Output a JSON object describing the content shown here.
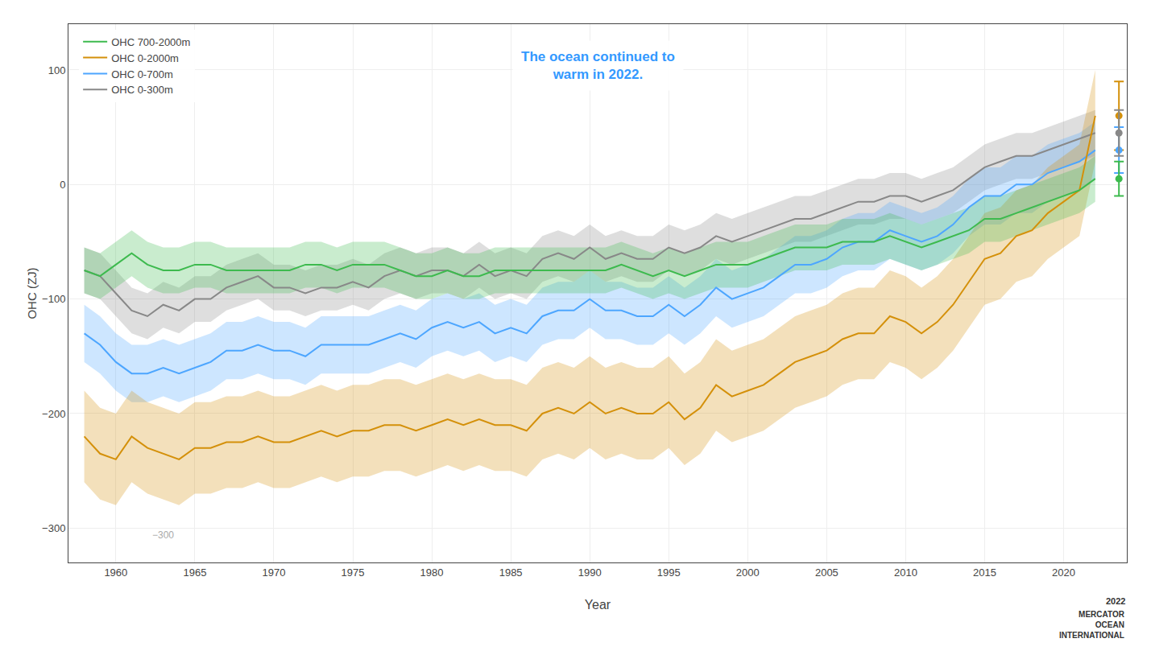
{
  "chart_data": {
    "type": "line",
    "xlabel": "Year",
    "ylabel": "OHC (ZJ)",
    "xlim": [
      1957,
      2024
    ],
    "ylim": [
      -330,
      140
    ],
    "xticks": [
      1960,
      1965,
      1970,
      1975,
      1980,
      1985,
      1990,
      1995,
      2000,
      2005,
      2010,
      2015,
      2020
    ],
    "yticks": [
      -300,
      -200,
      -100,
      0,
      100
    ],
    "grid": true,
    "legend": "upper left",
    "x": [
      1958,
      1959,
      1960,
      1961,
      1962,
      1963,
      1964,
      1965,
      1966,
      1967,
      1968,
      1969,
      1970,
      1971,
      1972,
      1973,
      1974,
      1975,
      1976,
      1977,
      1978,
      1979,
      1980,
      1981,
      1982,
      1983,
      1984,
      1985,
      1986,
      1987,
      1988,
      1989,
      1990,
      1991,
      1992,
      1993,
      1994,
      1995,
      1996,
      1997,
      1998,
      1999,
      2000,
      2001,
      2002,
      2003,
      2004,
      2005,
      2006,
      2007,
      2008,
      2009,
      2010,
      2011,
      2012,
      2013,
      2014,
      2015,
      2016,
      2017,
      2018,
      2019,
      2020,
      2021,
      2022
    ],
    "series": [
      {
        "name": "OHC 0-300m",
        "color": "#888888",
        "values": [
          -75,
          -80,
          -95,
          -110,
          -115,
          -105,
          -110,
          -100,
          -100,
          -90,
          -85,
          -80,
          -90,
          -90,
          -95,
          -90,
          -90,
          -85,
          -90,
          -80,
          -75,
          -80,
          -75,
          -75,
          -80,
          -70,
          -80,
          -75,
          -80,
          -65,
          -60,
          -65,
          -55,
          -65,
          -60,
          -65,
          -65,
          -55,
          -60,
          -55,
          -45,
          -50,
          -45,
          -40,
          -35,
          -30,
          -30,
          -25,
          -20,
          -15,
          -15,
          -10,
          -10,
          -15,
          -10,
          -5,
          5,
          15,
          20,
          25,
          25,
          30,
          35,
          40,
          45
        ],
        "errors": [
          20,
          20,
          20,
          20,
          20,
          20,
          20,
          20,
          20,
          20,
          20,
          20,
          20,
          20,
          20,
          20,
          20,
          20,
          20,
          20,
          20,
          20,
          20,
          20,
          20,
          20,
          20,
          20,
          20,
          20,
          20,
          20,
          20,
          20,
          20,
          20,
          20,
          20,
          20,
          20,
          20,
          20,
          20,
          20,
          20,
          20,
          20,
          20,
          20,
          20,
          20,
          20,
          20,
          20,
          20,
          20,
          20,
          20,
          20,
          20,
          20,
          20,
          20,
          20,
          20
        ]
      },
      {
        "name": "OHC 0-700m",
        "color": "#4da6ff",
        "values": [
          -130,
          -140,
          -155,
          -165,
          -165,
          -160,
          -165,
          -160,
          -155,
          -145,
          -145,
          -140,
          -145,
          -145,
          -150,
          -140,
          -140,
          -140,
          -140,
          -135,
          -130,
          -135,
          -125,
          -120,
          -125,
          -120,
          -130,
          -125,
          -130,
          -115,
          -110,
          -110,
          -100,
          -110,
          -110,
          -115,
          -115,
          -105,
          -115,
          -105,
          -90,
          -100,
          -95,
          -90,
          -80,
          -70,
          -70,
          -65,
          -55,
          -50,
          -50,
          -40,
          -45,
          -50,
          -45,
          -35,
          -20,
          -10,
          -10,
          0,
          0,
          10,
          15,
          20,
          30
        ],
        "errors": [
          25,
          25,
          25,
          25,
          25,
          25,
          25,
          25,
          25,
          25,
          25,
          25,
          25,
          25,
          25,
          25,
          25,
          25,
          25,
          25,
          25,
          25,
          25,
          25,
          25,
          25,
          25,
          25,
          25,
          25,
          25,
          25,
          25,
          25,
          25,
          25,
          25,
          25,
          25,
          25,
          25,
          25,
          25,
          25,
          25,
          25,
          25,
          25,
          25,
          25,
          25,
          25,
          25,
          25,
          25,
          25,
          25,
          25,
          25,
          25,
          25,
          25,
          25,
          25,
          25
        ]
      },
      {
        "name": "OHC 0-2000m",
        "color": "#d4900a",
        "values": [
          -220,
          -235,
          -240,
          -220,
          -230,
          -235,
          -240,
          -230,
          -230,
          -225,
          -225,
          -220,
          -225,
          -225,
          -220,
          -215,
          -220,
          -215,
          -215,
          -210,
          -210,
          -215,
          -210,
          -205,
          -210,
          -205,
          -210,
          -210,
          -215,
          -200,
          -195,
          -200,
          -190,
          -200,
          -195,
          -200,
          -200,
          -190,
          -205,
          -195,
          -175,
          -185,
          -180,
          -175,
          -165,
          -155,
          -150,
          -145,
          -135,
          -130,
          -130,
          -115,
          -120,
          -130,
          -120,
          -105,
          -85,
          -65,
          -60,
          -45,
          -40,
          -25,
          -15,
          -5,
          60
        ],
        "errors": [
          40,
          40,
          40,
          40,
          40,
          40,
          40,
          40,
          40,
          40,
          40,
          40,
          40,
          40,
          40,
          40,
          40,
          40,
          40,
          40,
          40,
          40,
          40,
          40,
          40,
          40,
          40,
          40,
          40,
          40,
          40,
          40,
          40,
          40,
          40,
          40,
          40,
          40,
          40,
          40,
          40,
          40,
          40,
          40,
          40,
          40,
          40,
          40,
          40,
          40,
          40,
          40,
          40,
          40,
          40,
          40,
          40,
          40,
          40,
          40,
          40,
          40,
          40,
          40,
          40
        ]
      },
      {
        "name": "OHC 700-2000m",
        "color": "#3dba4e",
        "values": [
          -75,
          -80,
          -70,
          -60,
          -70,
          -75,
          -75,
          -70,
          -70,
          -75,
          -75,
          -75,
          -75,
          -75,
          -70,
          -70,
          -75,
          -70,
          -70,
          -70,
          -75,
          -80,
          -80,
          -75,
          -80,
          -80,
          -75,
          -75,
          -75,
          -75,
          -75,
          -75,
          -75,
          -75,
          -70,
          -75,
          -80,
          -75,
          -80,
          -75,
          -70,
          -70,
          -70,
          -65,
          -60,
          -55,
          -55,
          -55,
          -50,
          -50,
          -50,
          -45,
          -50,
          -55,
          -50,
          -45,
          -40,
          -30,
          -30,
          -25,
          -20,
          -15,
          -10,
          -5,
          5
        ],
        "errors": [
          20,
          20,
          20,
          20,
          20,
          20,
          20,
          20,
          20,
          20,
          20,
          20,
          20,
          20,
          20,
          20,
          20,
          20,
          20,
          20,
          20,
          20,
          20,
          20,
          20,
          20,
          20,
          20,
          20,
          20,
          20,
          20,
          20,
          20,
          20,
          20,
          20,
          20,
          20,
          20,
          20,
          20,
          20,
          20,
          20,
          20,
          20,
          20,
          20,
          20,
          20,
          20,
          20,
          20,
          20,
          20,
          20,
          20,
          20,
          20,
          20,
          20,
          20,
          20,
          20
        ]
      }
    ],
    "point_estimates": {
      "x": 2023.5,
      "values": [
        60,
        30,
        45,
        5
      ],
      "errors": [
        30,
        20,
        20,
        15
      ],
      "colors": [
        "#d4900a",
        "#4da6ff",
        "#888888",
        "#3dba4e"
      ]
    },
    "annotations": [
      {
        "text": "The ocean continued to\nwarm in 2022.",
        "color": "#3399ff"
      },
      {
        "text": "−300",
        "x": 1963,
        "y": -300
      },
      {
        "text": "2022"
      },
      {
        "text": "MERCATOR\nOCEAN\nINTERNATIONAL"
      }
    ]
  }
}
